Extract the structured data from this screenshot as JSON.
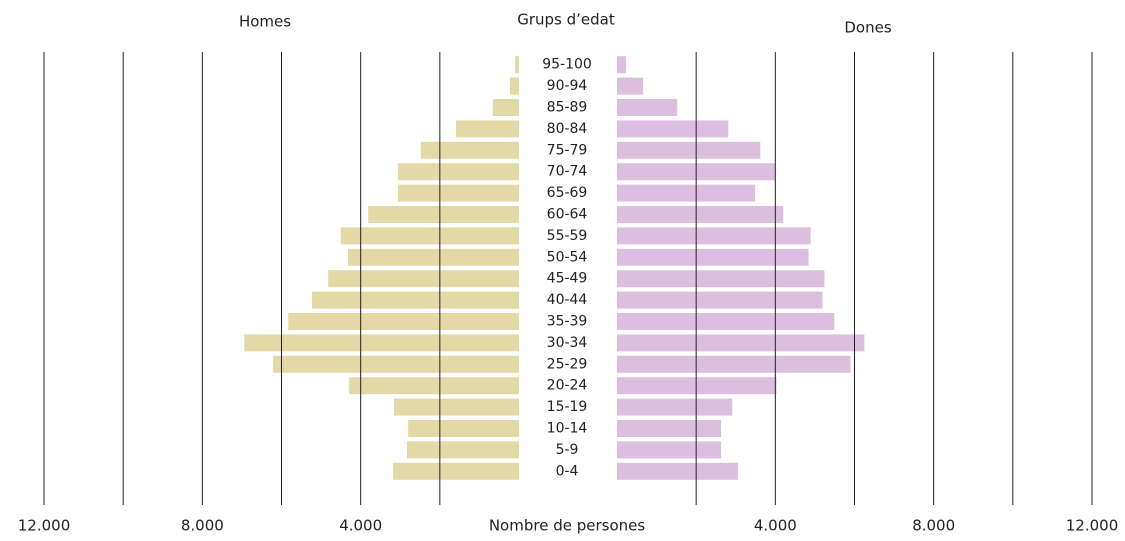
{
  "chart_data": {
    "type": "pyramid",
    "title": "Grups d’edat",
    "left_label": "Homes",
    "right_label": "Dones",
    "xlabel": "Nombre de persones",
    "categories": [
      "95-100",
      "90-94",
      "85-89",
      "80-84",
      "75-79",
      "70-74",
      "65-69",
      "60-64",
      "55-59",
      "50-54",
      "45-49",
      "40-44",
      "35-39",
      "30-34",
      "25-29",
      "20-24",
      "15-19",
      "10-14",
      "5-9",
      "0-4"
    ],
    "series": [
      {
        "name": "Homes",
        "color": "#e3d9a6",
        "side": "left",
        "values": [
          100,
          230,
          660,
          1590,
          2480,
          3060,
          3060,
          3810,
          4500,
          4320,
          4820,
          5230,
          5830,
          6940,
          6210,
          4290,
          3160,
          2800,
          2830,
          3180
        ]
      },
      {
        "name": "Dones",
        "color": "#dcbfdf",
        "side": "right",
        "values": [
          230,
          660,
          1520,
          2810,
          3620,
          4000,
          3490,
          4200,
          4890,
          4840,
          5240,
          5190,
          5490,
          6250,
          5900,
          4030,
          2910,
          2630,
          2630,
          3060
        ]
      }
    ],
    "xlim": [
      0,
      12000
    ],
    "xticks": [
      {
        "value": 4000,
        "label": "4.000"
      },
      {
        "value": 8000,
        "label": "8.000"
      },
      {
        "value": 12000,
        "label": "12.000"
      }
    ],
    "grid_values": [
      2000,
      4000,
      6000,
      8000,
      10000,
      12000
    ],
    "grid": true
  }
}
